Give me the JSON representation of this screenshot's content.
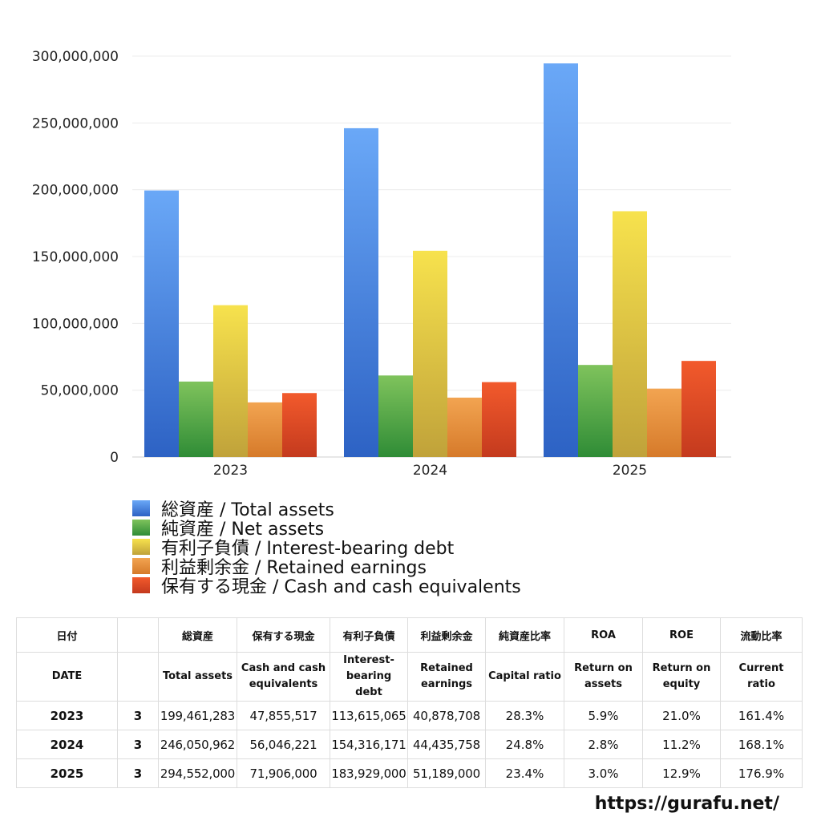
{
  "chart_data": {
    "type": "bar",
    "categories": [
      "2023",
      "2024",
      "2025"
    ],
    "series": [
      {
        "name": "総資産 / Total assets",
        "values": [
          199461283,
          246050962,
          294552000
        ],
        "color_top": "#6aa8f7",
        "color_bottom": "#2d62c4"
      },
      {
        "name": "純資産 / Net assets",
        "values": [
          56457000,
          61010000,
          68900000
        ],
        "color_top": "#7fc35c",
        "color_bottom": "#2f8c36"
      },
      {
        "name": "有利子負債 / Interest-bearing debt",
        "values": [
          113615065,
          154316171,
          183929000
        ],
        "color_top": "#f7e24d",
        "color_bottom": "#c0a23a"
      },
      {
        "name": "利益剰余金 / Retained earnings",
        "values": [
          40878708,
          44435758,
          51189000
        ],
        "color_top": "#f2a451",
        "color_bottom": "#d67a2a"
      },
      {
        "name": "保有する現金 /  Cash and cash equivalents",
        "values": [
          47855517,
          56046221,
          71906000
        ],
        "color_top": "#f25a2c",
        "color_bottom": "#c43a1e"
      }
    ],
    "ylim": [
      0,
      300000000
    ],
    "yticks": [
      "0",
      "50,000,000",
      "100,000,000",
      "150,000,000",
      "200,000,000",
      "250,000,000",
      "300,000,000"
    ],
    "title": "",
    "xlabel": "",
    "ylabel": "",
    "grid": true,
    "legend": "bottom"
  },
  "table": {
    "headers_ja": [
      "日付",
      "",
      "総資産",
      "保有する現金",
      "有利子負債",
      "利益剰余金",
      "純資産比率",
      "ROA",
      "ROE",
      "流動比率"
    ],
    "headers_en": [
      {
        "l1": "DATE",
        "l2": ""
      },
      {
        "l1": "",
        "l2": ""
      },
      {
        "l1": "Total assets",
        "l2": ""
      },
      {
        "l1": "Cash and cash",
        "l2": "equivalents"
      },
      {
        "l1": "Interest-",
        "l2": "bearing",
        "l3": "debt"
      },
      {
        "l1": "Retained",
        "l2": "earnings"
      },
      {
        "l1": "Capital ratio",
        "l2": ""
      },
      {
        "l1": "Return on",
        "l2": "assets"
      },
      {
        "l1": "Return on",
        "l2": "equity"
      },
      {
        "l1": "Current",
        "l2": "ratio"
      }
    ],
    "rows": [
      {
        "year": "2023",
        "month": "3",
        "total_assets": "199,461,283",
        "cash": "47,855,517",
        "debt": "113,615,065",
        "retained": "40,878,708",
        "capital_ratio": "28.3%",
        "roa": "5.9%",
        "roe": "21.0%",
        "current_ratio": "161.4%"
      },
      {
        "year": "2024",
        "month": "3",
        "total_assets": "246,050,962",
        "cash": "56,046,221",
        "debt": "154,316,171",
        "retained": "44,435,758",
        "capital_ratio": "24.8%",
        "roa": "2.8%",
        "roe": "11.2%",
        "current_ratio": "168.1%"
      },
      {
        "year": "2025",
        "month": "3",
        "total_assets": "294,552,000",
        "cash": "71,906,000",
        "debt": "183,929,000",
        "retained": "51,189,000",
        "capital_ratio": "23.4%",
        "roa": "3.0%",
        "roe": "12.9%",
        "current_ratio": "176.9%"
      }
    ]
  },
  "source_url": "https://gurafu.net/"
}
